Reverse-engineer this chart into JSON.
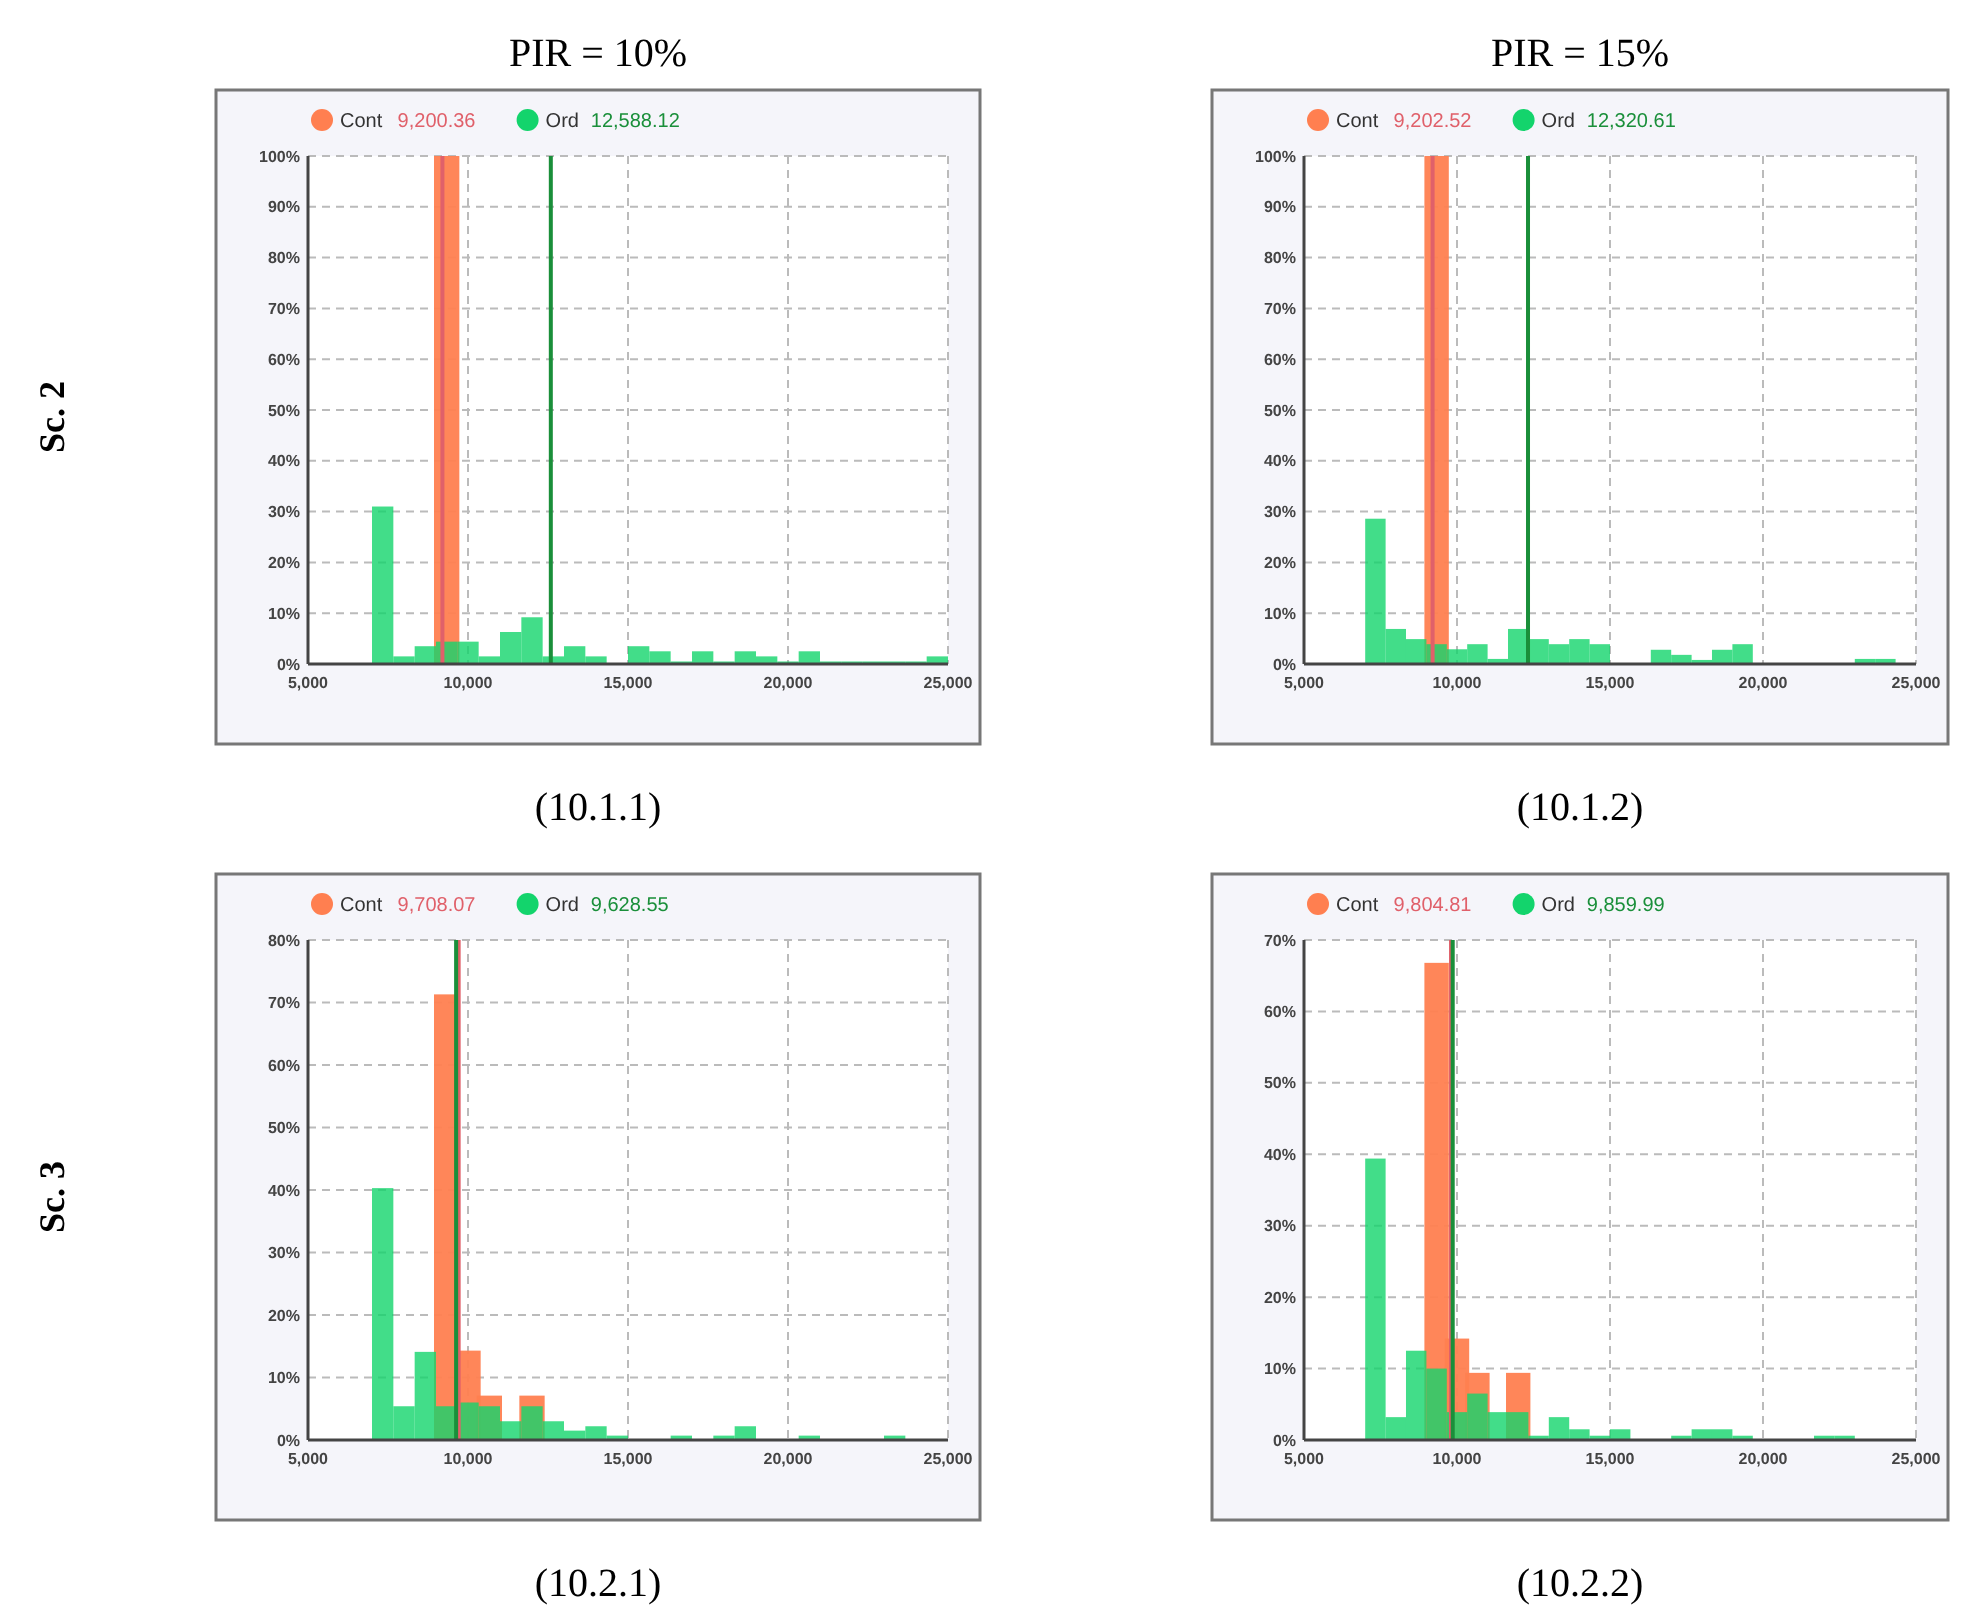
{
  "chart_data": [
    {
      "type": "histogram",
      "title": "PIR = 10%",
      "ylabel": "Sc. 2",
      "annotations": [
        "(10.1.1)"
      ],
      "bins": [
        5000,
        5667,
        6333,
        7000,
        7667,
        8333,
        9000,
        9667,
        10333,
        11000,
        11667,
        12333,
        13000,
        13667,
        14333,
        15000,
        15667,
        16333,
        17000,
        17667,
        18333,
        19000,
        19667,
        20333,
        21000,
        21667,
        22333,
        23000,
        23667,
        24333,
        25000
      ],
      "series": [
        {
          "name": "Cont",
          "color": "#ff7f50",
          "values": [
            0,
            0,
            0,
            0,
            0,
            0,
            100,
            0,
            0,
            0,
            0,
            0,
            0,
            0,
            0,
            0,
            0,
            0,
            0,
            0,
            0,
            0,
            0,
            0,
            0,
            0,
            0,
            0,
            0,
            0
          ]
        },
        {
          "name": "Ord",
          "color": "#13d46c",
          "values": [
            0,
            0,
            0,
            31,
            1.5,
            3.5,
            4.4,
            4.4,
            1.5,
            6.3,
            9.2,
            1.5,
            3.5,
            1.5,
            0,
            3.5,
            2.5,
            0.5,
            2.5,
            0.5,
            2.5,
            1.5,
            0.5,
            2.5,
            0.5,
            0.5,
            0.5,
            0.5,
            0.5,
            1.5
          ]
        }
      ],
      "ref_lines": [
        {
          "axis": "x",
          "value": 9200.36,
          "label": "9,200.36",
          "color": "#e0606a"
        },
        {
          "axis": "x",
          "value": 12588.12,
          "label": "12,588.12",
          "color": "#1a8f3a"
        }
      ],
      "xlim": [
        5000,
        25000
      ],
      "xticks": [
        {
          "value": 5000,
          "label": "5,000"
        },
        {
          "value": 10000,
          "label": "10,000"
        },
        {
          "value": 15000,
          "label": "15,000"
        },
        {
          "value": 20000,
          "label": "20,000"
        },
        {
          "value": 25000,
          "label": "25,000"
        }
      ],
      "ylim": [
        0,
        100
      ],
      "yticks": [
        {
          "value": 0,
          "label": "0%"
        },
        {
          "value": 10,
          "label": "10%"
        },
        {
          "value": 20,
          "label": "20%"
        },
        {
          "value": 30,
          "label": "30%"
        },
        {
          "value": 40,
          "label": "40%"
        },
        {
          "value": 50,
          "label": "50%"
        },
        {
          "value": 60,
          "label": "60%"
        },
        {
          "value": 70,
          "label": "70%"
        },
        {
          "value": 80,
          "label": "80%"
        },
        {
          "value": 90,
          "label": "90%"
        },
        {
          "value": 100,
          "label": "100%"
        }
      ],
      "grid": true,
      "legend": "top"
    },
    {
      "type": "histogram",
      "title": "PIR = 15%",
      "annotations": [
        "(10.1.2)"
      ],
      "bins": [
        5000,
        5667,
        6333,
        7000,
        7667,
        8333,
        9000,
        9667,
        10333,
        11000,
        11667,
        12333,
        13000,
        13667,
        14333,
        15000,
        15667,
        16333,
        17000,
        17667,
        18333,
        19000,
        19667,
        20333,
        21000,
        21667,
        22333,
        23000,
        23667,
        24333,
        25000
      ],
      "series": [
        {
          "name": "Cont",
          "color": "#ff7f50",
          "values": [
            0,
            0,
            0,
            0,
            0,
            0,
            100,
            0,
            0,
            0,
            0,
            0,
            0,
            0,
            0,
            0,
            0,
            0,
            0,
            0,
            0,
            0,
            0,
            0,
            0,
            0,
            0,
            0,
            0,
            0
          ]
        },
        {
          "name": "Ord",
          "color": "#13d46c",
          "values": [
            0,
            0,
            0,
            28.6,
            6.9,
            4.9,
            3.9,
            2.9,
            3.9,
            1,
            6.9,
            4.9,
            3.9,
            4.9,
            3.9,
            0,
            0,
            2.8,
            1.8,
            0.8,
            2.8,
            3.9,
            0,
            0,
            0,
            0,
            0,
            1,
            1,
            0
          ]
        }
      ],
      "ref_lines": [
        {
          "axis": "x",
          "value": 9202.52,
          "label": "9,202.52",
          "color": "#e0606a"
        },
        {
          "axis": "x",
          "value": 12320.61,
          "label": "12,320.61",
          "color": "#1a8f3a"
        }
      ],
      "xlim": [
        5000,
        25000
      ],
      "xticks": [
        {
          "value": 5000,
          "label": "5,000"
        },
        {
          "value": 10000,
          "label": "10,000"
        },
        {
          "value": 15000,
          "label": "15,000"
        },
        {
          "value": 20000,
          "label": "20,000"
        },
        {
          "value": 25000,
          "label": "25,000"
        }
      ],
      "ylim": [
        0,
        100
      ],
      "yticks": [
        {
          "value": 0,
          "label": "0%"
        },
        {
          "value": 10,
          "label": "10%"
        },
        {
          "value": 20,
          "label": "20%"
        },
        {
          "value": 30,
          "label": "30%"
        },
        {
          "value": 40,
          "label": "40%"
        },
        {
          "value": 50,
          "label": "50%"
        },
        {
          "value": 60,
          "label": "60%"
        },
        {
          "value": 70,
          "label": "70%"
        },
        {
          "value": 80,
          "label": "80%"
        },
        {
          "value": 90,
          "label": "90%"
        },
        {
          "value": 100,
          "label": "100%"
        }
      ],
      "grid": true,
      "legend": "top"
    },
    {
      "type": "histogram",
      "ylabel": "Sc. 3",
      "annotations": [
        "(10.2.1)"
      ],
      "bins": [
        5000,
        5667,
        6333,
        7000,
        7667,
        8333,
        9000,
        9667,
        10333,
        11000,
        11667,
        12333,
        13000,
        13667,
        14333,
        15000,
        15667,
        16333,
        17000,
        17667,
        18333,
        19000,
        19667,
        20333,
        21000,
        21667,
        22333,
        23000,
        23667,
        24333,
        25000
      ],
      "series": [
        {
          "name": "Cont",
          "color": "#ff7f50",
          "values": [
            0,
            0,
            0,
            0,
            0,
            0,
            71.3,
            14.3,
            7.1,
            0,
            7.1,
            0,
            0,
            0,
            0,
            0,
            0,
            0,
            0,
            0,
            0,
            0,
            0,
            0,
            0,
            0,
            0,
            0,
            0,
            0
          ]
        },
        {
          "name": "Ord",
          "color": "#13d46c",
          "values": [
            0,
            0,
            0,
            40.3,
            5.4,
            14.1,
            5.4,
            6,
            5.4,
            3,
            5.4,
            3,
            1.5,
            2.2,
            0.7,
            0,
            0,
            0.7,
            0,
            0.7,
            2.2,
            0,
            0,
            0.7,
            0,
            0,
            0,
            0.7,
            0,
            0
          ]
        }
      ],
      "ref_lines": [
        {
          "axis": "x",
          "value": 9708.07,
          "label": "9,708.07",
          "color": "#e0606a"
        },
        {
          "axis": "x",
          "value": 9628.55,
          "label": "9,628.55",
          "color": "#1a8f3a"
        }
      ],
      "xlim": [
        5000,
        25000
      ],
      "xticks": [
        {
          "value": 5000,
          "label": "5,000"
        },
        {
          "value": 10000,
          "label": "10,000"
        },
        {
          "value": 15000,
          "label": "15,000"
        },
        {
          "value": 20000,
          "label": "20,000"
        },
        {
          "value": 25000,
          "label": "25,000"
        }
      ],
      "ylim": [
        0,
        80
      ],
      "yticks": [
        {
          "value": 0,
          "label": "0%"
        },
        {
          "value": 10,
          "label": "10%"
        },
        {
          "value": 20,
          "label": "20%"
        },
        {
          "value": 30,
          "label": "30%"
        },
        {
          "value": 40,
          "label": "40%"
        },
        {
          "value": 50,
          "label": "50%"
        },
        {
          "value": 60,
          "label": "60%"
        },
        {
          "value": 70,
          "label": "70%"
        },
        {
          "value": 80,
          "label": "80%"
        }
      ],
      "grid": true,
      "legend": "top"
    },
    {
      "type": "histogram",
      "annotations": [
        "(10.2.2)"
      ],
      "bins": [
        5000,
        5667,
        6333,
        7000,
        7667,
        8333,
        9000,
        9667,
        10333,
        11000,
        11667,
        12333,
        13000,
        13667,
        14333,
        15000,
        15667,
        16333,
        17000,
        17667,
        18333,
        19000,
        19667,
        20333,
        21000,
        21667,
        22333,
        23000,
        23667,
        24333,
        25000
      ],
      "series": [
        {
          "name": "Cont",
          "color": "#ff7f50",
          "values": [
            0,
            0,
            0,
            0,
            0,
            0,
            66.8,
            14.2,
            9.4,
            0,
            9.4,
            0,
            0,
            0,
            0,
            0,
            0,
            0,
            0,
            0,
            0,
            0,
            0,
            0,
            0,
            0,
            0,
            0,
            0,
            0
          ]
        },
        {
          "name": "Ord",
          "color": "#13d46c",
          "values": [
            0,
            0,
            0,
            39.4,
            3.2,
            12.5,
            10,
            3.9,
            6.5,
            3.9,
            3.9,
            0.6,
            3.2,
            1.5,
            0.6,
            1.5,
            0,
            0,
            0.6,
            1.5,
            1.5,
            0.6,
            0,
            0,
            0,
            0.6,
            0.6,
            0,
            0,
            0
          ]
        }
      ],
      "ref_lines": [
        {
          "axis": "x",
          "value": 9804.81,
          "label": "9,804.81",
          "color": "#e0606a"
        },
        {
          "axis": "x",
          "value": 9859.99,
          "label": "9,859.99",
          "color": "#1a8f3a"
        }
      ],
      "xlim": [
        5000,
        25000
      ],
      "xticks": [
        {
          "value": 5000,
          "label": "5,000"
        },
        {
          "value": 10000,
          "label": "10,000"
        },
        {
          "value": 15000,
          "label": "15,000"
        },
        {
          "value": 20000,
          "label": "20,000"
        },
        {
          "value": 25000,
          "label": "25,000"
        }
      ],
      "ylim": [
        0,
        70
      ],
      "yticks": [
        {
          "value": 0,
          "label": "0%"
        },
        {
          "value": 10,
          "label": "10%"
        },
        {
          "value": 20,
          "label": "20%"
        },
        {
          "value": 30,
          "label": "30%"
        },
        {
          "value": 40,
          "label": "40%"
        },
        {
          "value": 50,
          "label": "50%"
        },
        {
          "value": 60,
          "label": "60%"
        },
        {
          "value": 70,
          "label": "70%"
        }
      ],
      "grid": true,
      "legend": "top"
    }
  ]
}
